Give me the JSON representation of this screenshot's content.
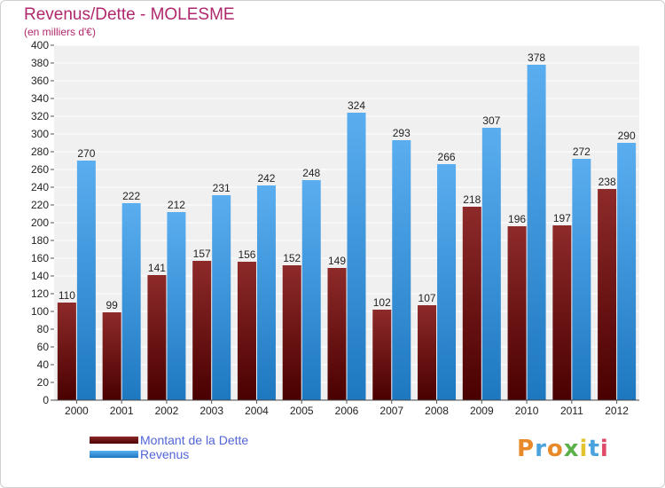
{
  "chart_data": {
    "type": "bar",
    "title": "Revenus/Dette - MOLESME",
    "subtitle": "(en milliers d'€)",
    "categories": [
      "2000",
      "2001",
      "2002",
      "2003",
      "2004",
      "2005",
      "2006",
      "2007",
      "2008",
      "2009",
      "2010",
      "2011",
      "2012"
    ],
    "series": [
      {
        "name": "Montant de la Dette",
        "values": [
          110,
          99,
          141,
          157,
          156,
          152,
          149,
          102,
          107,
          218,
          196,
          197,
          238
        ],
        "color": "#8b1a1a"
      },
      {
        "name": "Revenus",
        "values": [
          270,
          222,
          212,
          231,
          242,
          248,
          324,
          293,
          266,
          307,
          378,
          272,
          290
        ],
        "color": "#4da3e6"
      }
    ],
    "ylim": [
      0,
      400
    ],
    "ytick_step": 20,
    "grid": true,
    "legend_position": "bottom-left"
  },
  "branding": {
    "logo_text": "Proxiti"
  }
}
